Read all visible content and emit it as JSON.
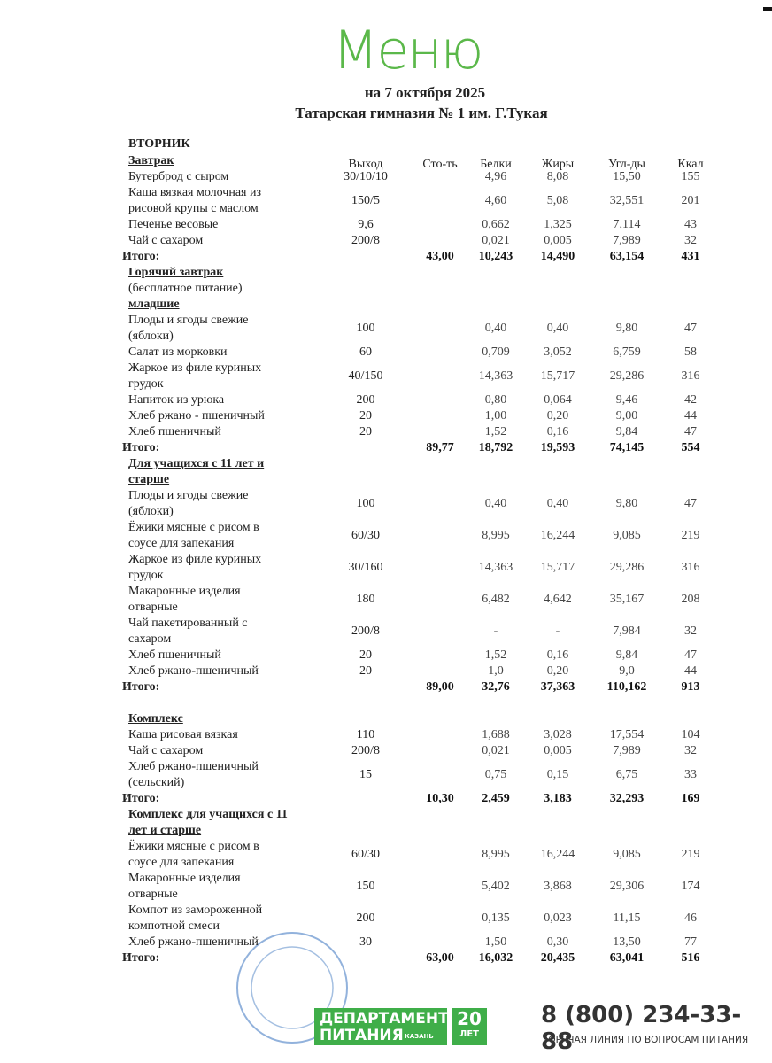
{
  "header": {
    "title": "Меню",
    "date": "на  7 октября 2025",
    "school": "Татарская гимназия № 1 им. Г.Тукая"
  },
  "day": "ВТОРНИК",
  "columns": {
    "yield": "Выход",
    "cost": "Сто-ть",
    "protein": "Белки",
    "fat": "Жиры",
    "carbs": "Угл-ды",
    "kcal": "Ккал"
  },
  "rows": [
    {
      "heading": "Завтрак"
    },
    {
      "name": "Бутерброд с сыром",
      "yield": "30/10/10",
      "protein": "4,96",
      "fat": "8,08",
      "carbs": "15,50",
      "kcal": "155"
    },
    {
      "name": "Каша вязкая молочная из\nрисовой крупы с маслом",
      "yield": "150/5",
      "protein": "4,60",
      "fat": "5,08",
      "carbs": "32,551",
      "kcal": "201"
    },
    {
      "name": "Печенье весовые",
      "yield": "9,6",
      "protein": "0,662",
      "fat": "1,325",
      "carbs": "7,114",
      "kcal": "43"
    },
    {
      "name": "Чай с сахаром",
      "yield": "200/8",
      "protein": "0,021",
      "fat": "0,005",
      "carbs": "7,989",
      "kcal": "32"
    },
    {
      "total": "Итого:",
      "cost": "43,00",
      "protein": "10,243",
      "fat": "14,490",
      "carbs": "63,154",
      "kcal": "431"
    },
    {
      "heading": "Горячий завтрак"
    },
    {
      "note": "(бесплатное питание)"
    },
    {
      "heading": "младшие"
    },
    {
      "name": "Плоды и ягоды свежие\n(яблоки)",
      "yield": "100",
      "protein": "0,40",
      "fat": "0,40",
      "carbs": "9,80",
      "kcal": "47"
    },
    {
      "name": "Салат из морковки",
      "yield": "60",
      "protein": "0,709",
      "fat": "3,052",
      "carbs": "6,759",
      "kcal": "58"
    },
    {
      "name": "Жаркое из филе куриных\nгрудок",
      "yield": "40/150",
      "protein": "14,363",
      "fat": "15,717",
      "carbs": "29,286",
      "kcal": "316"
    },
    {
      "name": "Напиток из урюка",
      "yield": "200",
      "protein": "0,80",
      "fat": "0,064",
      "carbs": "9,46",
      "kcal": "42"
    },
    {
      "name": "Хлеб ржано - пшеничный",
      "yield": "20",
      "protein": "1,00",
      "fat": "0,20",
      "carbs": "9,00",
      "kcal": "44"
    },
    {
      "name": "Хлеб пшеничный",
      "yield": "20",
      "protein": "1,52",
      "fat": "0,16",
      "carbs": "9,84",
      "kcal": "47"
    },
    {
      "total": "Итого:",
      "cost": "89,77",
      "protein": "18,792",
      "fat": "19,593",
      "carbs": "74,145",
      "kcal": "554"
    },
    {
      "heading": "Для учащихся с 11 лет и\nстарше"
    },
    {
      "name": "Плоды и ягоды свежие\n(яблоки)",
      "yield": "100",
      "protein": "0,40",
      "fat": "0,40",
      "carbs": "9,80",
      "kcal": "47"
    },
    {
      "name": "Ёжики мясные с рисом в\nсоусе для запекания",
      "yield": "60/30",
      "protein": "8,995",
      "fat": "16,244",
      "carbs": "9,085",
      "kcal": "219"
    },
    {
      "name": "Жаркое из филе куриных\nгрудок",
      "yield": "30/160",
      "protein": "14,363",
      "fat": "15,717",
      "carbs": "29,286",
      "kcal": "316"
    },
    {
      "name": "Макаронные изделия\nотварные",
      "yield": "180",
      "protein": "6,482",
      "fat": "4,642",
      "carbs": "35,167",
      "kcal": "208"
    },
    {
      "name": "Чай пакетированный с\nсахаром",
      "yield": "200/8",
      "protein": "-",
      "fat": "-",
      "carbs": "7,984",
      "kcal": "32"
    },
    {
      "name": "Хлеб пшеничный",
      "yield": "20",
      "protein": "1,52",
      "fat": "0,16",
      "carbs": "9,84",
      "kcal": "47"
    },
    {
      "name": "Хлеб ржано-пшеничный",
      "yield": "20",
      "protein": "1,0",
      "fat": "0,20",
      "carbs": "9,0",
      "kcal": "44"
    },
    {
      "total": "Итого:",
      "cost": "89,00",
      "protein": "32,76",
      "fat": "37,363",
      "carbs": "110,162",
      "kcal": "913"
    },
    {
      "heading": "Комплекс"
    },
    {
      "name": "Каша рисовая вязкая",
      "yield": "110",
      "protein": "1,688",
      "fat": "3,028",
      "carbs": "17,554",
      "kcal": "104"
    },
    {
      "name": "Чай  с сахаром",
      "yield": "200/8",
      "protein": "0,021",
      "fat": "0,005",
      "carbs": "7,989",
      "kcal": "32"
    },
    {
      "name": "Хлеб ржано-пшеничный\n(сельский)",
      "yield": "15",
      "protein": "0,75",
      "fat": "0,15",
      "carbs": "6,75",
      "kcal": "33"
    },
    {
      "total": "Итого:",
      "cost": "10,30",
      "protein": "2,459",
      "fat": "3,183",
      "carbs": "32,293",
      "kcal": "169"
    },
    {
      "heading": "Комплекс для учащихся с 11\nлет и старше"
    },
    {
      "name": "Ёжики мясные с рисом в\nсоусе для запекания",
      "yield": "60/30",
      "protein": "8,995",
      "fat": "16,244",
      "carbs": "9,085",
      "kcal": "219"
    },
    {
      "name": "Макаронные изделия\nотварные",
      "yield": "150",
      "protein": "5,402",
      "fat": "3,868",
      "carbs": "29,306",
      "kcal": "174"
    },
    {
      "name": "Компот из замороженной\nкомпотной смеси",
      "yield": "200",
      "protein": "0,135",
      "fat": "0,023",
      "carbs": "11,15",
      "kcal": "46"
    },
    {
      "name": "Хлеб ржано-пшеничный",
      "yield": "30",
      "protein": "1,50",
      "fat": "0,30",
      "carbs": "13,50",
      "kcal": "77"
    },
    {
      "total": "Итого:",
      "cost": "63,00",
      "protein": "16,032",
      "fat": "20,435",
      "carbs": "63,041",
      "kcal": "516"
    }
  ],
  "footer": {
    "logo_top": "ДЕПАРТАМЕНТ",
    "logo_bottom": "ПИТАНИЯ",
    "logo_city": "КАЗАНЬ",
    "anniversary": "20",
    "anniversary_unit": "ЛЕТ",
    "phone": "8 (800) 234-33-88",
    "hotline": "ГОРЯЧАЯ ЛИНИЯ ПО ВОПРОСАМ ПИТАНИЯ"
  }
}
